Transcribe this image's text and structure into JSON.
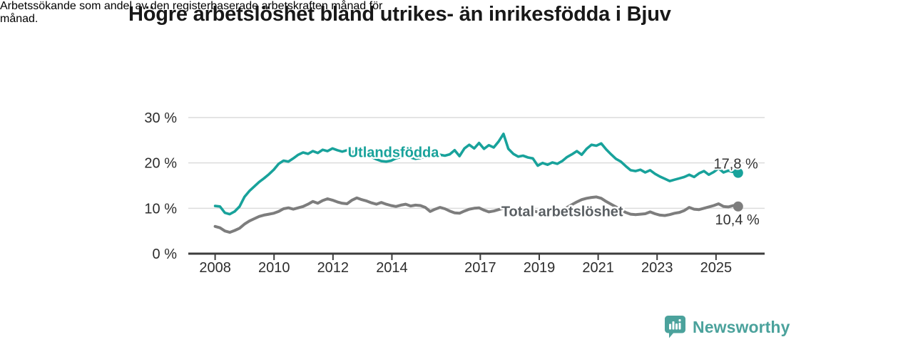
{
  "header": {
    "title": "Högre arbetslöshet bland utrikes- än inrikesfödda i Bjuv",
    "subtitle": "Arbetssökande som andel av den registerbaserade arbetskraften månad för månad.",
    "subtitle_lines": [
      "Arbetssökande som andel av den registerbaserade arbetskraften månad för",
      "månad."
    ]
  },
  "footer": {
    "brand": "Newsworthy",
    "logo_icon": "bar-chart-speech-bubble-icon"
  },
  "colors": {
    "brand": "#4ba29c",
    "series-foreign": "#18a29b",
    "series-total": "#7d7d7d",
    "total-label": "#5a5f63",
    "axis": "#3c3c3c",
    "grid": "#dcdcdc",
    "tick-text": "#2d2d2d",
    "value-text": "#323232",
    "title-text": "#181818",
    "background": "#ffffff"
  },
  "chart_data": {
    "type": "line",
    "title": "Högre arbetslöshet bland utrikes- än inrikesfödda i Bjuv",
    "subtitle": "Arbetssökande som andel av den registerbaserade arbetskraften månad för månad.",
    "x_start": 2008.0,
    "x_end": 2025.75,
    "xlim": [
      2007.09,
      2026.65
    ],
    "ylim": [
      0,
      30
    ],
    "grid": true,
    "x_ticks": [
      2008,
      2010,
      2012,
      2014,
      2017,
      2019,
      2021,
      2023,
      2025
    ],
    "x_tick_labels": [
      "2008",
      "2010",
      "2012",
      "2014",
      "2017",
      "2019",
      "2021",
      "2023",
      "2025"
    ],
    "y_ticks": [
      0,
      10,
      20,
      30
    ],
    "y_tick_labels": [
      "0 %",
      "10 %",
      "20 %",
      "30 %"
    ],
    "series": [
      {
        "name": "Utlandsfödda",
        "color_var": "series-foreign",
        "line_width": 3.6,
        "dot_radius": 7,
        "label_at": {
          "x": 2014.05,
          "y": 22.35
        },
        "end_label": "17,8 %",
        "end_value": 17.8,
        "end_label_pos": "above",
        "values": [
          10.5,
          10.4,
          9.0,
          8.7,
          9.3,
          10.4,
          12.5,
          13.8,
          14.8,
          15.8,
          16.6,
          17.5,
          18.5,
          19.8,
          20.5,
          20.3,
          21.0,
          21.8,
          22.3,
          22.0,
          22.6,
          22.2,
          22.9,
          22.6,
          23.2,
          22.8,
          22.5,
          22.8,
          22.3,
          22.9,
          22.4,
          21.8,
          21.3,
          20.8,
          20.4,
          20.3,
          20.5,
          21.0,
          21.3,
          21.6,
          21.2,
          20.9,
          21.1,
          21.4,
          21.7,
          21.5,
          21.8,
          21.6,
          21.9,
          22.8,
          21.5,
          23.2,
          24.0,
          23.2,
          24.4,
          23.1,
          23.9,
          23.4,
          24.7,
          26.4,
          23.1,
          22.0,
          21.4,
          21.6,
          21.2,
          21.0,
          19.4,
          20.0,
          19.6,
          20.1,
          19.8,
          20.4,
          21.3,
          21.9,
          22.6,
          21.8,
          23.1,
          24.0,
          23.8,
          24.3,
          23.0,
          21.9,
          20.9,
          20.3,
          19.3,
          18.4,
          18.2,
          18.5,
          17.9,
          18.4,
          17.6,
          17.0,
          16.5,
          16.0,
          16.3,
          16.6,
          16.9,
          17.4,
          16.9,
          17.7,
          18.2,
          17.4,
          18.0,
          18.8,
          17.9,
          18.3,
          18.0,
          17.8
        ]
      },
      {
        "name": "Total arbetslöshet",
        "color_var": "series-total",
        "label_color_var": "total-label",
        "line_width": 4,
        "dot_radius": 7,
        "label_at": {
          "x": 2019.78,
          "y": 9.35
        },
        "end_label": "10,4 %",
        "end_value": 10.4,
        "end_label_pos": "below",
        "values": [
          6.0,
          5.7,
          5.0,
          4.7,
          5.1,
          5.6,
          6.5,
          7.2,
          7.7,
          8.2,
          8.5,
          8.7,
          8.9,
          9.3,
          9.9,
          10.1,
          9.8,
          10.1,
          10.4,
          10.9,
          11.5,
          11.1,
          11.7,
          12.1,
          11.8,
          11.4,
          11.1,
          11.0,
          11.8,
          12.3,
          11.9,
          11.6,
          11.2,
          10.9,
          11.3,
          10.9,
          10.6,
          10.4,
          10.7,
          10.9,
          10.5,
          10.7,
          10.6,
          10.2,
          9.3,
          9.8,
          10.2,
          9.9,
          9.4,
          9.0,
          8.9,
          9.4,
          9.8,
          10.0,
          10.1,
          9.6,
          9.2,
          9.4,
          9.7,
          10.0,
          9.7,
          9.4,
          9.3,
          9.5,
          9.3,
          9.4,
          9.2,
          9.4,
          9.6,
          9.5,
          9.4,
          9.6,
          10.2,
          10.8,
          11.4,
          11.9,
          12.2,
          12.4,
          12.5,
          12.2,
          11.5,
          10.9,
          10.3,
          9.7,
          9.1,
          8.7,
          8.6,
          8.7,
          8.8,
          9.2,
          8.8,
          8.5,
          8.4,
          8.6,
          8.9,
          9.1,
          9.5,
          10.2,
          9.8,
          9.7,
          10.0,
          10.3,
          10.6,
          11.0,
          10.4,
          10.3,
          10.6,
          10.4
        ]
      }
    ]
  }
}
